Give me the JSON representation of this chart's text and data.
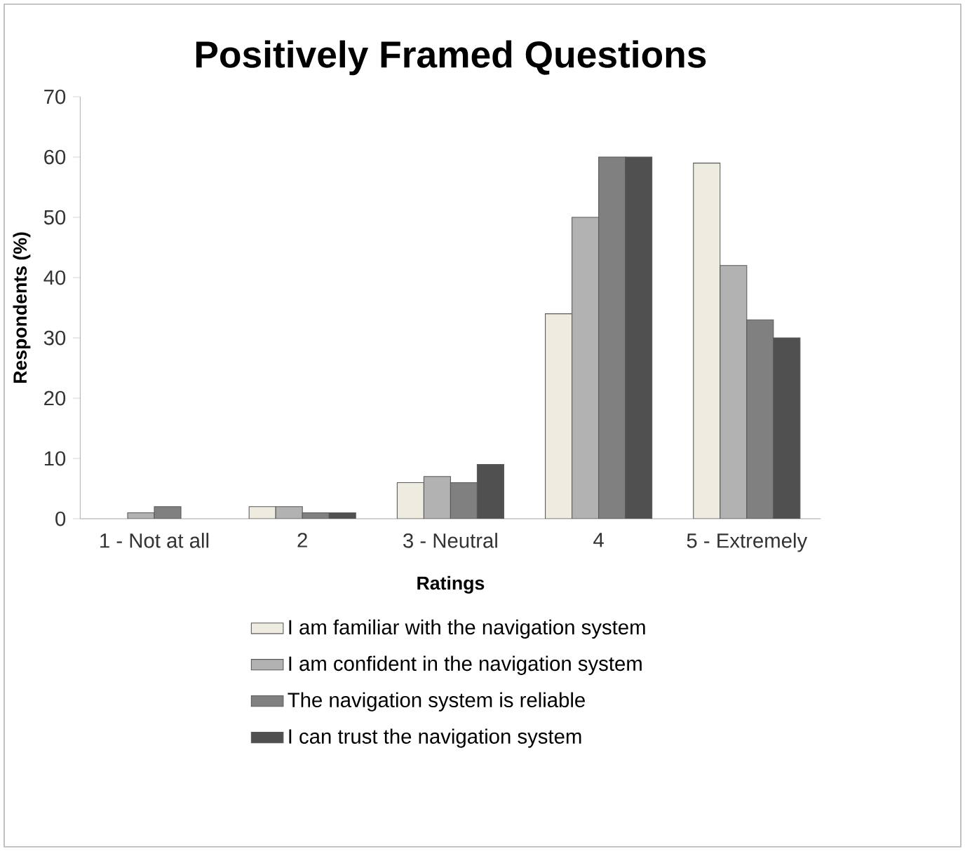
{
  "chart_data": {
    "type": "bar",
    "title": "Positively Framed Questions",
    "xlabel": "Ratings",
    "ylabel": "Respondents (%)",
    "categories": [
      "1 - Not at all",
      "2",
      "3 - Neutral",
      "4",
      "5 - Extremely"
    ],
    "series": [
      {
        "name": "I am familiar with the navigation system",
        "color": "#eeebe0",
        "values": [
          0,
          2,
          6,
          34,
          59
        ]
      },
      {
        "name": "I am confident in the navigation system",
        "color": "#b2b2b2",
        "values": [
          1,
          2,
          7,
          50,
          42
        ]
      },
      {
        "name": "The navigation system is reliable",
        "color": "#808080",
        "values": [
          2,
          1,
          6,
          60,
          33
        ]
      },
      {
        "name": "I can trust the navigation system",
        "color": "#505050",
        "values": [
          0,
          1,
          9,
          60,
          30
        ]
      }
    ],
    "ylim": [
      0,
      70
    ],
    "yticks": [
      0,
      10,
      20,
      30,
      40,
      50,
      60,
      70
    ],
    "grid": false,
    "legend": "bottom"
  }
}
